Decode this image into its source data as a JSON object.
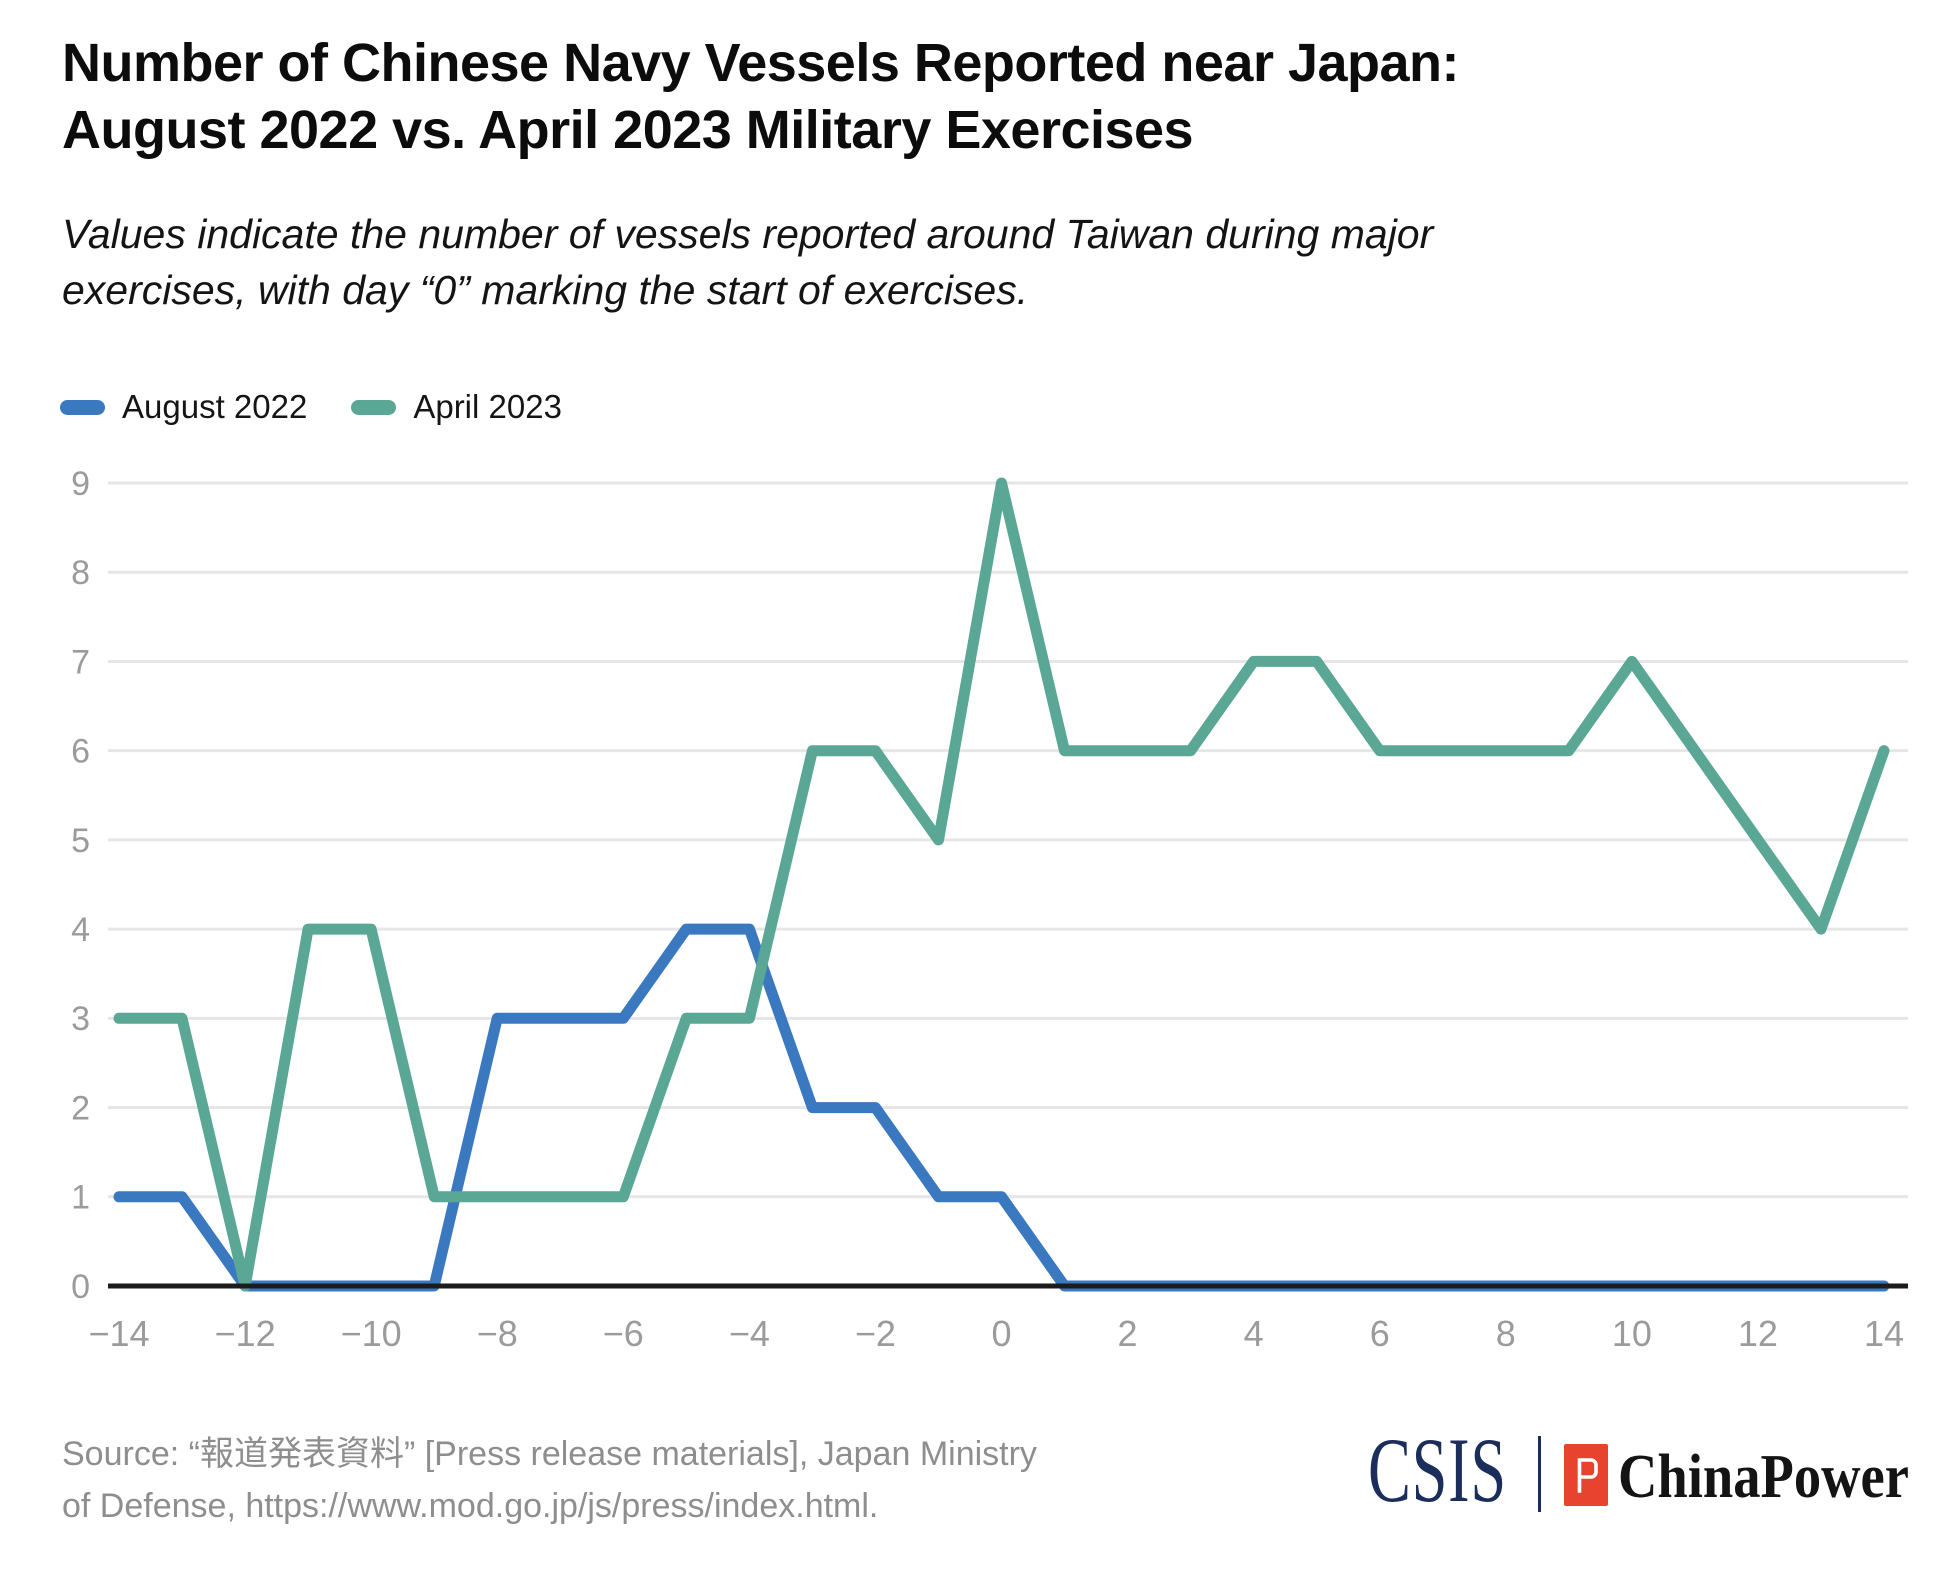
{
  "header": {
    "title_lines": [
      "Number of Chinese Navy Vessels Reported near Japan:",
      "August 2022 vs. April 2023 Military Exercises"
    ],
    "subtitle_lines": [
      "Values indicate the number of vessels reported around Taiwan during major",
      "exercises, with day “0” marking the start of exercises."
    ]
  },
  "legend": {
    "items": [
      {
        "label": "August 2022",
        "color": "#3A78C0"
      },
      {
        "label": "April 2023",
        "color": "#59A794"
      }
    ]
  },
  "chart_data": {
    "type": "line",
    "title": "Number of Chinese Navy Vessels Reported near Japan: August 2022 vs. April 2023 Military Exercises",
    "xlabel": "",
    "ylabel": "",
    "xlim": [
      -14,
      14
    ],
    "ylim": [
      0,
      9
    ],
    "grid": "horizontal",
    "legend_position": "top-left",
    "x": [
      -14,
      -13,
      -12,
      -11,
      -10,
      -9,
      -8,
      -7,
      -6,
      -5,
      -4,
      -3,
      -2,
      -1,
      0,
      1,
      2,
      3,
      4,
      5,
      6,
      7,
      8,
      9,
      10,
      11,
      12,
      13,
      14
    ],
    "series": [
      {
        "name": "August 2022",
        "color": "#3A78C0",
        "values": [
          1,
          1,
          0,
          0,
          0,
          0,
          3,
          3,
          3,
          4,
          4,
          2,
          2,
          1,
          1,
          0,
          0,
          0,
          0,
          0,
          0,
          0,
          0,
          0,
          0,
          0,
          0,
          0,
          0
        ]
      },
      {
        "name": "April 2023",
        "color": "#59A794",
        "values": [
          3,
          3,
          0,
          4,
          4,
          1,
          1,
          1,
          1,
          3,
          3,
          6,
          6,
          5,
          9,
          6,
          6,
          6,
          7,
          7,
          6,
          6,
          6,
          6,
          7,
          6,
          5,
          4,
          6
        ]
      }
    ],
    "x_ticks": [
      -14,
      -12,
      -10,
      -8,
      -6,
      -4,
      -2,
      0,
      2,
      4,
      6,
      8,
      10,
      12,
      14
    ],
    "x_tick_labels": [
      "−14",
      "−12",
      "−10",
      "−8",
      "−6",
      "−4",
      "−2",
      "0",
      "2",
      "4",
      "6",
      "8",
      "10",
      "12",
      "14"
    ],
    "y_ticks": [
      0,
      1,
      2,
      3,
      4,
      5,
      6,
      7,
      8,
      9
    ],
    "y_tick_labels": [
      "0",
      "1",
      "2",
      "3",
      "4",
      "5",
      "6",
      "7",
      "8",
      "9"
    ]
  },
  "colors": {
    "gridline": "#E6E6E6",
    "axis_line": "#1C1C1C",
    "tick_label": "#9B9B9B",
    "source_text": "#8E8E8E"
  },
  "footer": {
    "source_lines": [
      "Source: “報道発表資料” [Press release materials], Japan Ministry",
      "of Defense, https://www.mod.go.jp/js/press/index.html."
    ],
    "logos": {
      "csis": "CSIS",
      "chinapower": "ChinaPower",
      "csis_color": "#1B2D5B",
      "logo_red": "#E8432E"
    }
  }
}
